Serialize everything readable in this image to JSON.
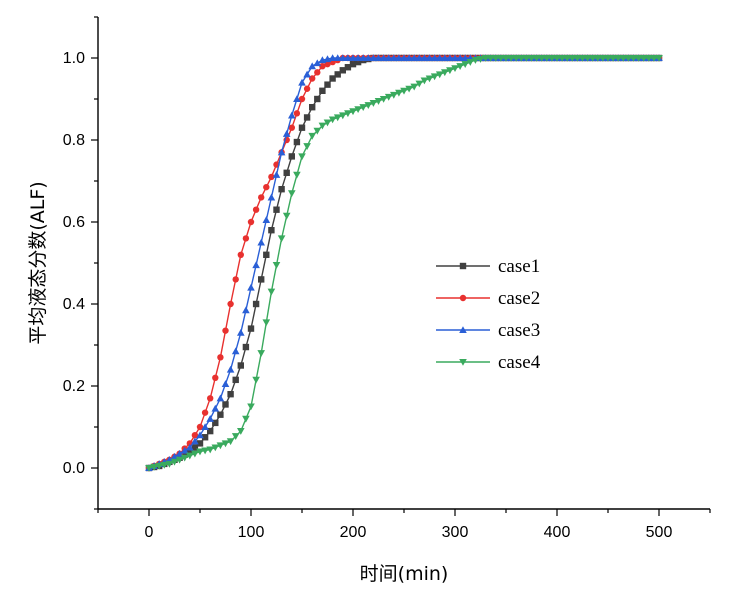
{
  "chart_data": {
    "type": "line",
    "title": "",
    "xlabel": "时间(min)",
    "ylabel": "平均液态分数(ALF)",
    "xlim": [
      -50,
      550
    ],
    "ylim": [
      -0.1,
      1.1
    ],
    "xticks": [
      "0",
      "100",
      "200",
      "300",
      "400",
      "500"
    ],
    "yticks": [
      "0.0",
      "0.2",
      "0.4",
      "0.6",
      "0.8",
      "1.0"
    ],
    "legend_position": "center-right",
    "grid": false,
    "series": [
      {
        "name": "case1",
        "color": "#404040",
        "marker": "square",
        "x": [
          0,
          10,
          20,
          30,
          40,
          50,
          60,
          70,
          80,
          90,
          100,
          110,
          120,
          130,
          140,
          150,
          160,
          170,
          180,
          190,
          200,
          210,
          220,
          230,
          240,
          250,
          300,
          350,
          400,
          450,
          500
        ],
        "y": [
          0.0,
          0.005,
          0.015,
          0.025,
          0.04,
          0.06,
          0.09,
          0.13,
          0.18,
          0.25,
          0.34,
          0.46,
          0.58,
          0.68,
          0.76,
          0.83,
          0.88,
          0.92,
          0.95,
          0.97,
          0.985,
          0.995,
          1.0,
          1.0,
          1.0,
          1.0,
          1.0,
          1.0,
          1.0,
          1.0,
          1.0
        ]
      },
      {
        "name": "case2",
        "color": "#e8312f",
        "marker": "circle",
        "x": [
          0,
          10,
          20,
          30,
          40,
          50,
          60,
          70,
          80,
          90,
          100,
          110,
          120,
          130,
          140,
          150,
          160,
          170,
          180,
          190,
          200,
          250,
          300,
          350,
          400,
          450,
          500
        ],
        "y": [
          0.0,
          0.01,
          0.02,
          0.035,
          0.06,
          0.1,
          0.17,
          0.27,
          0.4,
          0.52,
          0.6,
          0.66,
          0.71,
          0.77,
          0.83,
          0.9,
          0.95,
          0.98,
          0.99,
          1.0,
          1.0,
          1.0,
          1.0,
          1.0,
          1.0,
          1.0,
          1.0
        ]
      },
      {
        "name": "case3",
        "color": "#2a5fd6",
        "marker": "triangle-up",
        "x": [
          0,
          10,
          20,
          30,
          40,
          50,
          60,
          70,
          80,
          90,
          100,
          110,
          120,
          130,
          140,
          150,
          160,
          170,
          180,
          190,
          200,
          250,
          300,
          350,
          400,
          450,
          500
        ],
        "y": [
          0.0,
          0.01,
          0.02,
          0.035,
          0.05,
          0.08,
          0.12,
          0.17,
          0.24,
          0.33,
          0.44,
          0.55,
          0.66,
          0.77,
          0.86,
          0.94,
          0.98,
          0.995,
          1.0,
          1.0,
          1.0,
          1.0,
          1.0,
          1.0,
          1.0,
          1.0,
          1.0
        ]
      },
      {
        "name": "case4",
        "color": "#3aaa5e",
        "marker": "triangle-down",
        "x": [
          0,
          10,
          20,
          30,
          40,
          50,
          60,
          70,
          80,
          90,
          100,
          110,
          120,
          130,
          140,
          150,
          160,
          170,
          180,
          190,
          200,
          210,
          220,
          230,
          240,
          250,
          260,
          270,
          280,
          290,
          300,
          310,
          320,
          330,
          350,
          400,
          450,
          500
        ],
        "y": [
          0.0,
          0.005,
          0.01,
          0.02,
          0.03,
          0.04,
          0.045,
          0.055,
          0.065,
          0.09,
          0.15,
          0.28,
          0.43,
          0.56,
          0.67,
          0.76,
          0.81,
          0.835,
          0.85,
          0.86,
          0.87,
          0.88,
          0.89,
          0.9,
          0.91,
          0.92,
          0.93,
          0.945,
          0.955,
          0.965,
          0.975,
          0.985,
          0.995,
          1.0,
          1.0,
          1.0,
          1.0,
          1.0
        ]
      }
    ]
  }
}
